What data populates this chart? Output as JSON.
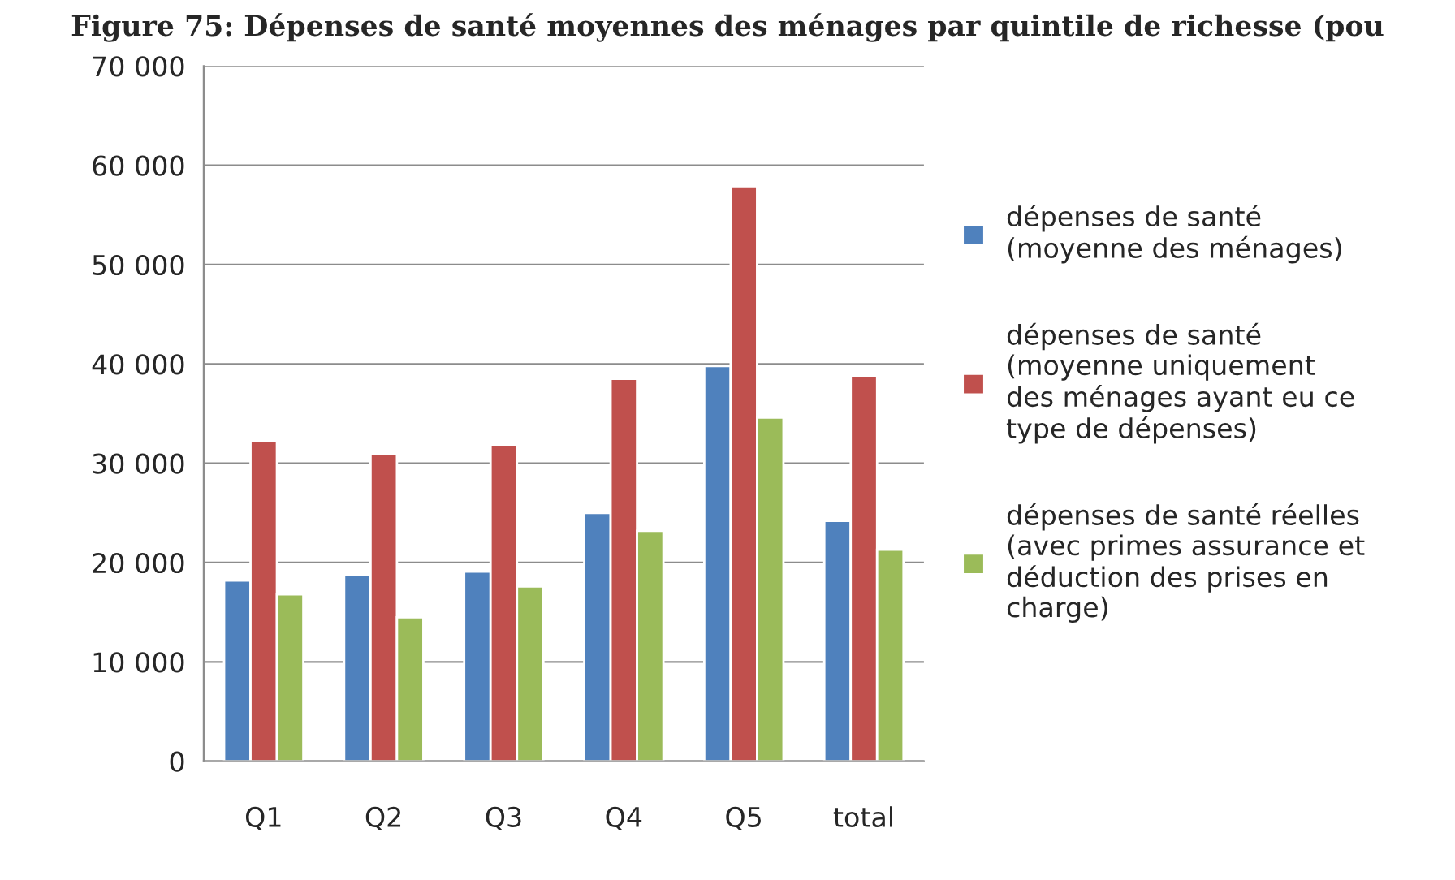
{
  "chart_data": {
    "type": "bar",
    "title": "Figure 75: Dépenses de santé moyennes des ménages par quintile de richesse (pou",
    "categories": [
      "Q1",
      "Q2",
      "Q3",
      "Q4",
      "Q5",
      "total"
    ],
    "series": [
      {
        "name": "dépenses de santé\n(moyenne des ménages)",
        "color": "#4f81bd",
        "values": [
          18200,
          18800,
          19100,
          25000,
          39800,
          24200
        ]
      },
      {
        "name": "dépenses de santé\n(moyenne uniquement\ndes ménages ayant eu ce\ntype de dépenses)",
        "color": "#c0504d",
        "values": [
          32200,
          30900,
          31800,
          38500,
          57900,
          38800
        ]
      },
      {
        "name": "dépenses de santé réelles\n(avec primes assurance et\ndéduction des prises en\ncharge)",
        "color": "#9bbb59",
        "values": [
          16800,
          14500,
          17600,
          23200,
          34600,
          21300
        ]
      }
    ],
    "ylim": [
      0,
      70000
    ],
    "yticks": [
      {
        "value": 0,
        "label": "0"
      },
      {
        "value": 10000,
        "label": "10 000"
      },
      {
        "value": 20000,
        "label": "20 000"
      },
      {
        "value": 30000,
        "label": "30 000"
      },
      {
        "value": 40000,
        "label": "40 000"
      },
      {
        "value": 50000,
        "label": "50 000"
      },
      {
        "value": 60000,
        "label": "60 000"
      },
      {
        "value": 70000,
        "label": "70 000"
      }
    ],
    "grid": "y",
    "legend": "right"
  }
}
